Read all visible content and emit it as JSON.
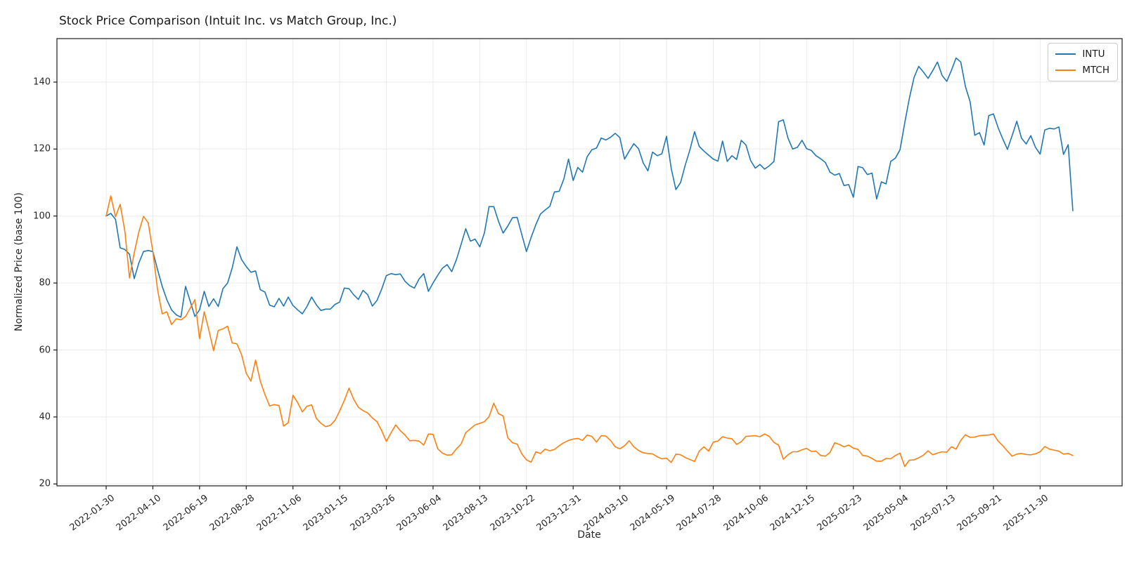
{
  "title": "Stock Price Comparison (Intuit Inc. vs Match Group, Inc.)",
  "chart_data": {
    "type": "line",
    "title": "Stock Price Comparison (Intuit Inc. vs Match Group, Inc.)",
    "xlabel": "Date",
    "ylabel": "Normalized Price (base 100)",
    "grid": true,
    "legend_position": "upper right",
    "background": "#ffffff",
    "ylim": [
      19.4,
      153.0
    ],
    "yticks": [
      20,
      40,
      60,
      80,
      100,
      120,
      140
    ],
    "x_frequency": "weekly",
    "x_start_date": "2022-01-30",
    "x_tick_every_n_points": 10,
    "x_tick_labels": [
      "2022-01-30",
      "2022-04-10",
      "2022-06-19",
      "2022-08-28",
      "2022-11-06",
      "2023-01-15",
      "2023-03-26",
      "2023-06-04",
      "2023-08-13",
      "2023-10-22",
      "2023-12-31",
      "2024-03-10",
      "2024-05-19",
      "2024-07-28",
      "2024-10-06",
      "2024-12-15",
      "2025-02-23",
      "2025-05-04",
      "2025-07-13",
      "2025-09-21",
      "2025-11-30"
    ],
    "series": [
      {
        "name": "INTU",
        "color": "#1f77b4",
        "values": [
          100.0,
          100.8,
          99.0,
          90.5,
          90.0,
          88.6,
          81.3,
          86.0,
          89.4,
          89.7,
          89.4,
          84.0,
          79.0,
          75.0,
          72.0,
          70.5,
          69.8,
          79.0,
          74.5,
          70.0,
          72.0,
          77.5,
          73.0,
          75.3,
          73.0,
          78.3,
          80.0,
          84.5,
          90.8,
          87.0,
          84.9,
          83.2,
          83.6,
          78.0,
          77.3,
          73.4,
          72.9,
          75.4,
          73.1,
          75.8,
          73.3,
          72.0,
          70.8,
          73.0,
          75.8,
          73.5,
          71.8,
          72.2,
          72.2,
          73.6,
          74.3,
          78.5,
          78.3,
          76.5,
          75.1,
          77.8,
          76.5,
          73.1,
          74.8,
          78.2,
          82.2,
          82.8,
          82.5,
          82.7,
          80.5,
          79.2,
          78.5,
          81.2,
          82.8,
          77.5,
          80.0,
          82.3,
          84.4,
          85.5,
          83.4,
          87.0,
          91.5,
          96.2,
          92.5,
          93.1,
          90.8,
          95.0,
          102.8,
          102.8,
          98.5,
          94.9,
          97.0,
          99.5,
          99.6,
          94.5,
          89.4,
          93.6,
          97.4,
          100.6,
          101.8,
          102.9,
          107.2,
          107.4,
          111.0,
          117.0,
          110.6,
          114.5,
          113.1,
          117.7,
          119.8,
          120.3,
          123.3,
          122.7,
          123.5,
          124.7,
          123.4,
          117.0,
          119.4,
          121.6,
          120.1,
          115.9,
          113.5,
          119.1,
          118.0,
          118.6,
          123.8,
          114.2,
          107.9,
          110.0,
          115.2,
          119.8,
          125.2,
          120.8,
          119.4,
          118.2,
          117.0,
          116.4,
          122.4,
          116.3,
          118.0,
          116.9,
          122.6,
          121.2,
          116.6,
          114.3,
          115.4,
          114.0,
          115.0,
          116.3,
          128.2,
          128.7,
          123.3,
          120.0,
          120.5,
          122.6,
          120.1,
          119.6,
          118.0,
          117.1,
          116.0,
          113.1,
          112.2,
          112.7,
          109.1,
          109.4,
          105.6,
          114.8,
          114.4,
          112.4,
          112.8,
          105.1,
          110.2,
          109.6,
          116.3,
          117.3,
          119.8,
          127.8,
          135.2,
          141.4,
          144.7,
          143.0,
          141.1,
          143.4,
          146.0,
          142.0,
          140.2,
          143.5,
          147.2,
          146.0,
          138.7,
          134.1,
          124.1,
          124.9,
          121.2,
          130.0,
          130.5,
          126.4,
          123.0,
          119.9,
          124.0,
          128.3,
          123.3,
          121.5,
          124.0,
          120.5,
          118.5,
          125.7,
          126.2,
          126.0,
          126.6,
          118.4,
          121.3,
          101.6
        ]
      },
      {
        "name": "MTCH",
        "color": "#ff7f0e",
        "values": [
          100.0,
          106.0,
          99.8,
          103.5,
          95.5,
          81.5,
          89.0,
          95.3,
          99.9,
          98.0,
          89.4,
          78.0,
          70.8,
          71.4,
          67.6,
          69.3,
          69.0,
          70.0,
          72.5,
          75.0,
          63.4,
          71.4,
          65.9,
          59.8,
          65.8,
          66.3,
          67.1,
          62.1,
          61.8,
          58.6,
          53.0,
          50.7,
          57.0,
          50.7,
          46.7,
          43.3,
          43.7,
          43.4,
          37.3,
          38.3,
          46.5,
          44.3,
          41.5,
          43.2,
          43.6,
          39.6,
          38.1,
          37.1,
          37.5,
          39.0,
          41.8,
          44.9,
          48.6,
          45.3,
          42.9,
          41.9,
          41.2,
          39.7,
          38.6,
          35.9,
          32.7,
          35.3,
          37.6,
          35.9,
          34.6,
          32.9,
          33.0,
          32.8,
          31.6,
          34.9,
          34.8,
          30.5,
          29.2,
          28.6,
          28.7,
          30.5,
          31.9,
          35.3,
          36.5,
          37.6,
          38.1,
          38.6,
          40.1,
          44.1,
          41.0,
          40.3,
          33.8,
          32.3,
          31.9,
          29.0,
          27.2,
          26.5,
          29.6,
          29.1,
          30.4,
          29.9,
          30.3,
          31.4,
          32.3,
          33.0,
          33.4,
          33.6,
          33.0,
          34.6,
          34.2,
          32.5,
          34.4,
          34.3,
          33.0,
          31.1,
          30.5,
          31.4,
          32.9,
          31.1,
          30.0,
          29.3,
          29.1,
          29.0,
          28.1,
          27.5,
          27.7,
          26.4,
          28.9,
          28.7,
          27.9,
          27.3,
          26.7,
          29.8,
          31.1,
          29.8,
          32.5,
          32.8,
          34.1,
          33.7,
          33.5,
          31.8,
          32.6,
          34.2,
          34.3,
          34.4,
          34.1,
          34.9,
          34.2,
          32.4,
          31.6,
          27.4,
          28.7,
          29.6,
          29.6,
          30.2,
          30.6,
          29.7,
          29.8,
          28.5,
          28.3,
          29.4,
          32.3,
          31.8,
          31.1,
          31.6,
          30.7,
          30.3,
          28.5,
          28.3,
          27.6,
          26.8,
          26.8,
          27.6,
          27.5,
          28.5,
          29.2,
          25.2,
          27.1,
          27.2,
          27.8,
          28.6,
          29.9,
          28.7,
          29.2,
          29.6,
          29.5,
          31.1,
          30.4,
          33.0,
          34.7,
          33.9,
          34.0,
          34.4,
          34.5,
          34.6,
          34.9,
          32.8,
          31.4,
          29.8,
          28.3,
          28.9,
          29.1,
          28.8,
          28.7,
          29.0,
          29.6,
          31.2,
          30.4,
          30.1,
          29.8,
          28.9,
          29.1,
          28.5
        ]
      }
    ]
  },
  "legend": {
    "items": [
      {
        "label": "INTU"
      },
      {
        "label": "MTCH"
      }
    ]
  }
}
